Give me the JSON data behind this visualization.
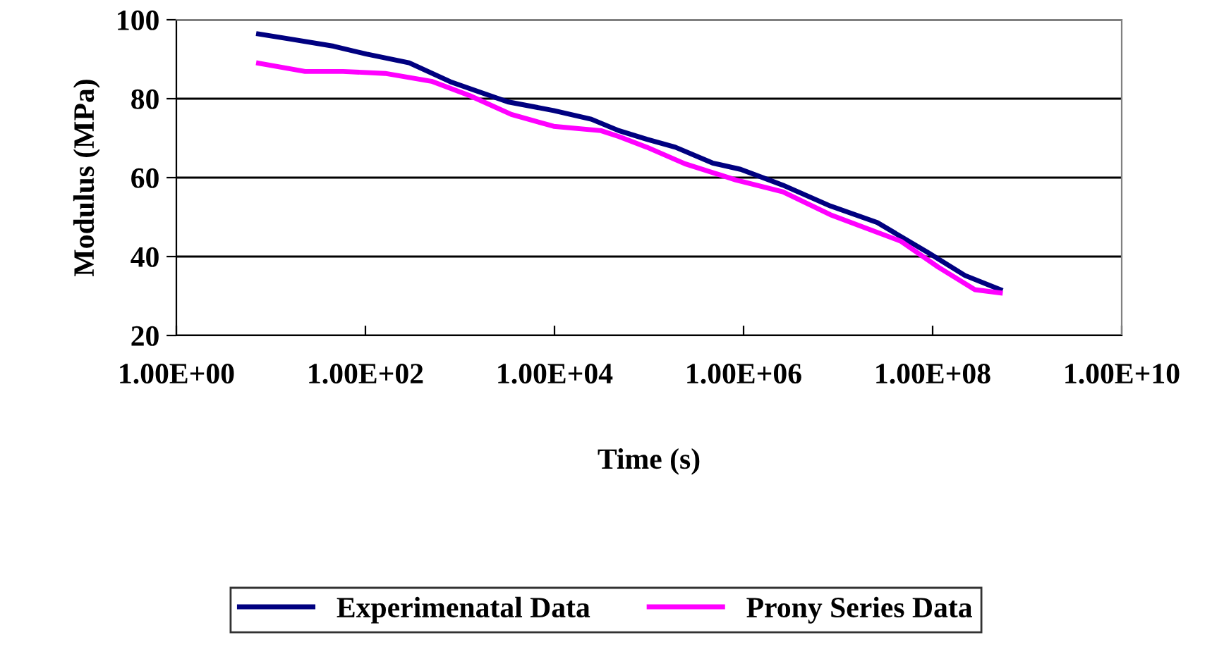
{
  "chart_data": {
    "type": "line",
    "xlabel": "Time (s)",
    "ylabel": "Modulus (MPa)",
    "log": "x",
    "xlim": [
      1,
      10000000000
    ],
    "xticks": [
      {
        "value": 1,
        "label": "1.00E+00"
      },
      {
        "value": 100,
        "label": "1.00E+02"
      },
      {
        "value": 10000,
        "label": "1.00E+04"
      },
      {
        "value": 1000000,
        "label": "1.00E+06"
      },
      {
        "value": 100000000,
        "label": "1.00E+08"
      },
      {
        "value": 10000000000,
        "label": "1.00E+10"
      }
    ],
    "ylim": [
      20,
      100
    ],
    "yticks": [
      20,
      40,
      60,
      80,
      100
    ],
    "grid": "y",
    "legend": "bottom",
    "marker": "none",
    "line_style": "solid",
    "series": [
      {
        "name": "Experimenatal Data",
        "color": "#000080",
        "x": [
          7.4,
          16,
          46,
          102,
          290,
          790,
          3200,
          9800,
          24500,
          48000,
          95000,
          190000,
          470000,
          930000,
          2600000,
          8300000,
          26000000,
          91000000,
          220000000,
          520000000
        ],
        "values": [
          96.4,
          95.1,
          93.3,
          91.3,
          89.1,
          84.3,
          79.2,
          77.0,
          74.8,
          71.9,
          69.7,
          67.7,
          63.7,
          62.1,
          58.1,
          52.8,
          48.6,
          40.9,
          35.2,
          31.6
        ]
      },
      {
        "name": "Prony Series Data",
        "color": "#ff00ff",
        "x": [
          7.4,
          23,
          58,
          162,
          500,
          1260,
          3500,
          9800,
          31000,
          48000,
          95000,
          240000,
          830000,
          2600000,
          8300000,
          46000000,
          115000000,
          280000000,
          520000000
        ],
        "values": [
          89.0,
          86.9,
          86.9,
          86.4,
          84.4,
          80.8,
          76.0,
          73.0,
          71.9,
          70.4,
          67.7,
          63.5,
          59.4,
          56.4,
          50.6,
          43.9,
          37.3,
          31.6,
          30.8
        ]
      }
    ]
  }
}
